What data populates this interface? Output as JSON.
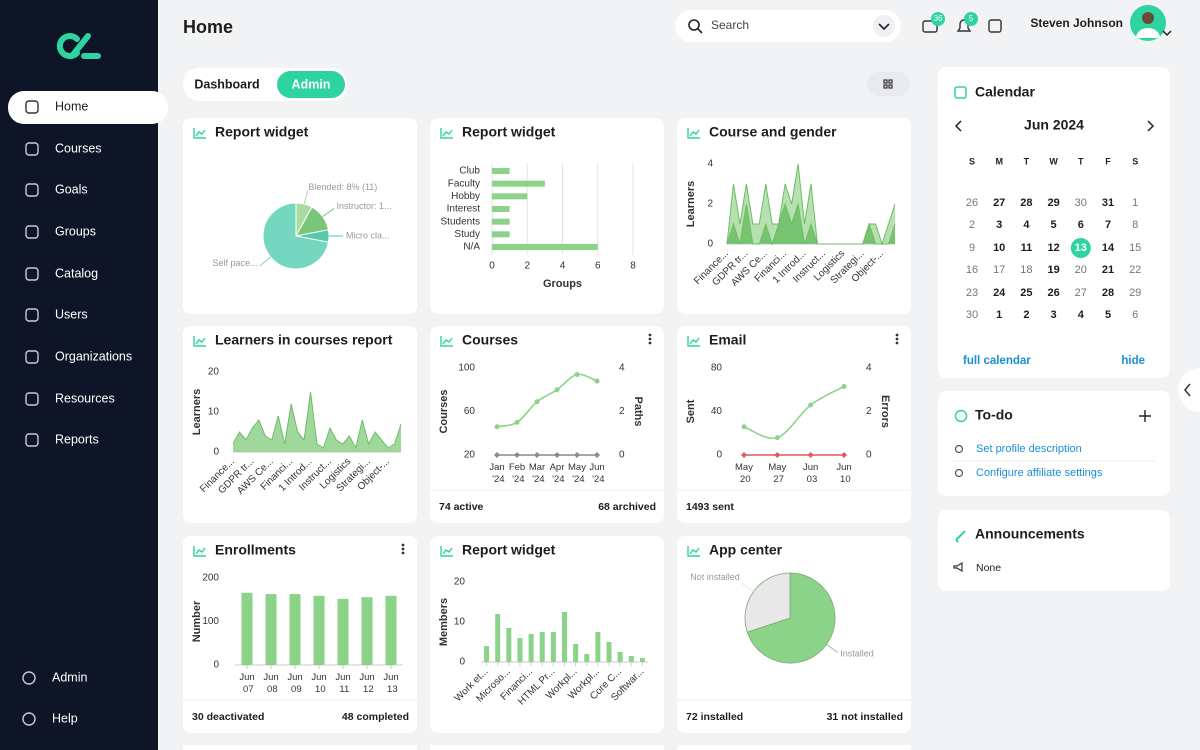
{
  "sidebar": {
    "items": [
      "Home",
      "Courses",
      "Goals",
      "Groups",
      "Catalog",
      "Users",
      "Organizations",
      "Resources",
      "Reports"
    ],
    "bottom": [
      "Admin",
      "Help"
    ],
    "active": 0
  },
  "header": {
    "title": "Home",
    "search": "Search",
    "mail_badge": 36,
    "bell_badge": 5,
    "user": "Steven Johnson"
  },
  "tabs": {
    "items": [
      "Dashboard",
      "Admin"
    ],
    "active": 1
  },
  "widgets": [
    {
      "title": "Report widget",
      "chart": {
        "type": "pie",
        "categories": [
          "Blended: 8% (11)",
          "Instructor: 1...",
          "Micro cla...",
          "Self pace..."
        ],
        "values": [
          8,
          14,
          6,
          72
        ],
        "colors": [
          "#a9dca0",
          "#79c57a",
          "#55c9a8",
          "#76d7c0"
        ]
      }
    },
    {
      "title": "Report widget",
      "chart": {
        "type": "hbar",
        "categories": [
          "Club",
          "Faculty",
          "Hobby",
          "Interest",
          "Students",
          "Study",
          "N/A"
        ],
        "values": [
          1,
          3,
          2,
          1,
          1,
          1,
          6
        ],
        "color": "#8cd38a",
        "xlim": [
          0,
          8
        ],
        "xticks": [
          0,
          2,
          4,
          6,
          8
        ],
        "xlabel": "Groups",
        "grid": true
      }
    },
    {
      "title": "Course and gender",
      "chart": {
        "type": "area",
        "categories": [
          "Finance...",
          null,
          null,
          "GDPR tr...",
          null,
          null,
          "AWS Ce...",
          null,
          null,
          "Financi...",
          null,
          null,
          "1 Introd...",
          null,
          null,
          "Instruct...",
          null,
          null,
          "Logistics",
          null,
          null,
          "Strategi...",
          null,
          null,
          "Object-...",
          null,
          null
        ],
        "series": [
          {
            "color": "#a9dca0",
            "values": [
              0,
              3,
              1,
              3,
              1,
              1,
              3,
              1,
              1,
              3,
              2,
              4,
              1,
              3,
              0,
              0,
              0,
              0,
              0,
              0,
              0,
              0,
              1,
              1,
              0,
              1,
              2
            ]
          },
          {
            "color": "#6dbd67",
            "values": [
              0,
              1,
              0,
              2,
              0,
              0,
              1,
              0,
              1,
              2,
              1,
              2,
              0,
              1,
              0,
              0,
              0,
              0,
              0,
              0,
              0,
              0,
              1,
              0,
              0,
              0,
              1
            ]
          }
        ],
        "ylim": [
          0,
          4
        ],
        "yticks": [
          0,
          2,
          4
        ],
        "ylabel": "Learners"
      }
    },
    {
      "title": "Learners in courses report",
      "chart": {
        "type": "area",
        "categories": [
          "Finance...",
          null,
          null,
          "GDPR tr...",
          null,
          null,
          "AWS Ce...",
          null,
          null,
          "Financi...",
          null,
          null,
          "1 Introd...",
          null,
          null,
          "Instruct...",
          null,
          null,
          "Logistics",
          null,
          null,
          "Strategi...",
          null,
          null,
          "Object-...",
          null,
          null
        ],
        "series": [
          {
            "color": "#8fd18a",
            "values": [
              2,
              5,
              3,
              6,
              8,
              4,
              3,
              9,
              2,
              12,
              5,
              3,
              15,
              2,
              1,
              6,
              3,
              2,
              4,
              1,
              8,
              2,
              5,
              3,
              1,
              2,
              7
            ]
          }
        ],
        "ylim": [
          0,
          20
        ],
        "yticks": [
          0,
          10,
          20
        ],
        "ylabel": "Learners"
      }
    },
    {
      "title": "Courses",
      "menu": true,
      "chart": {
        "type": "line",
        "categories": [
          "Jan '24",
          "Feb '24",
          "Mar '24",
          "Apr '24",
          "May '24",
          "Jun '24"
        ],
        "series": [
          {
            "color": "#8cd38a",
            "marker": "circle",
            "values": [
              46,
              50,
              69,
              80,
              94,
              88
            ]
          },
          {
            "color": "#8a8a8a",
            "marker": "diamond",
            "axis": "y2",
            "values": [
              0,
              0,
              0,
              0,
              0,
              0
            ]
          }
        ],
        "ylim": [
          20,
          100
        ],
        "yticks": [
          20,
          60,
          100
        ],
        "ylabel": "Courses",
        "y2lim": [
          0,
          4
        ],
        "y2ticks": [
          0,
          2,
          4
        ],
        "y2label": "Paths"
      },
      "footer": [
        "74 active",
        "68 archived"
      ]
    },
    {
      "title": "Email",
      "menu": true,
      "chart": {
        "type": "line",
        "categories": [
          "May 20",
          "May 27",
          "Jun 03",
          "Jun 10"
        ],
        "series": [
          {
            "color": "#8cd38a",
            "marker": "circle",
            "values": [
              26,
              16,
              46,
              63
            ]
          },
          {
            "color": "#e05a5a",
            "marker": "diamond",
            "axis": "y2",
            "values": [
              0,
              0,
              0,
              0
            ]
          }
        ],
        "ylim": [
          0,
          80
        ],
        "yticks": [
          0,
          40,
          80
        ],
        "ylabel": "Sent",
        "y2lim": [
          0,
          4
        ],
        "y2ticks": [
          0,
          2,
          4
        ],
        "y2label": "Errors"
      },
      "footer": [
        "1493 sent"
      ]
    },
    {
      "title": "Enrollments",
      "menu": true,
      "chart": {
        "type": "bar",
        "categories": [
          "Jun 07",
          "Jun 08",
          "Jun 09",
          "Jun 10",
          "Jun 11",
          "Jun 12",
          "Jun 13"
        ],
        "values": [
          166,
          163,
          163,
          159,
          152,
          156,
          159
        ],
        "color": "#8cd38a",
        "ylim": [
          0,
          200
        ],
        "yticks": [
          0,
          100,
          200
        ],
        "ylabel": "Number"
      },
      "footer": [
        "30 deactivated",
        "48 completed"
      ]
    },
    {
      "title": "Report widget",
      "chart": {
        "type": "bar",
        "categories": [
          "Work et...",
          null,
          "Microso...",
          null,
          "Financi...",
          null,
          "HTML Pr...",
          null,
          "Workpl...",
          null,
          "Workpl...",
          null,
          "Core C...",
          null,
          "Softwar..."
        ],
        "values": [
          4,
          12,
          8.5,
          6,
          7,
          7.5,
          7.5,
          12.5,
          4.5,
          2,
          7.5,
          5,
          2.5,
          1.5,
          1
        ],
        "color": "#8cd38a",
        "ylim": [
          0,
          20
        ],
        "yticks": [
          0,
          10,
          20
        ],
        "ylabel": "Members"
      }
    },
    {
      "title": "App center",
      "chart": {
        "type": "pie",
        "categories": [
          "Installed",
          "Not installed"
        ],
        "values": [
          72,
          31
        ],
        "colors": [
          "#8cd38a",
          "#e8e8e8"
        ]
      },
      "footer": [
        "72 installed",
        "31 not installed"
      ]
    }
  ],
  "calendar": {
    "title": "Calendar",
    "month": "Jun 2024",
    "weekdays": [
      "S",
      "M",
      "T",
      "W",
      "T",
      "F",
      "S"
    ],
    "weeks": [
      [
        26,
        27,
        28,
        29,
        30,
        31,
        1
      ],
      [
        2,
        3,
        4,
        5,
        6,
        7,
        8
      ],
      [
        9,
        10,
        11,
        12,
        13,
        14,
        15
      ],
      [
        16,
        17,
        18,
        19,
        20,
        21,
        22
      ],
      [
        23,
        24,
        25,
        26,
        27,
        28,
        29
      ],
      [
        30,
        1,
        2,
        3,
        4,
        5,
        6
      ]
    ],
    "bold": [
      [
        1,
        2,
        3,
        5
      ],
      [
        1,
        2,
        3,
        4,
        5
      ],
      [
        1,
        2,
        3,
        5
      ],
      [
        3,
        5
      ],
      [
        1,
        2,
        3,
        5
      ],
      [
        1,
        2,
        3,
        4,
        5
      ]
    ],
    "selected": [
      2,
      4
    ],
    "links": [
      "full calendar",
      "hide"
    ]
  },
  "todo": {
    "title": "To-do",
    "items": [
      "Set profile description",
      "Configure affiliate settings"
    ]
  },
  "announcements": {
    "title": "Announcements",
    "items": [
      "None"
    ]
  }
}
